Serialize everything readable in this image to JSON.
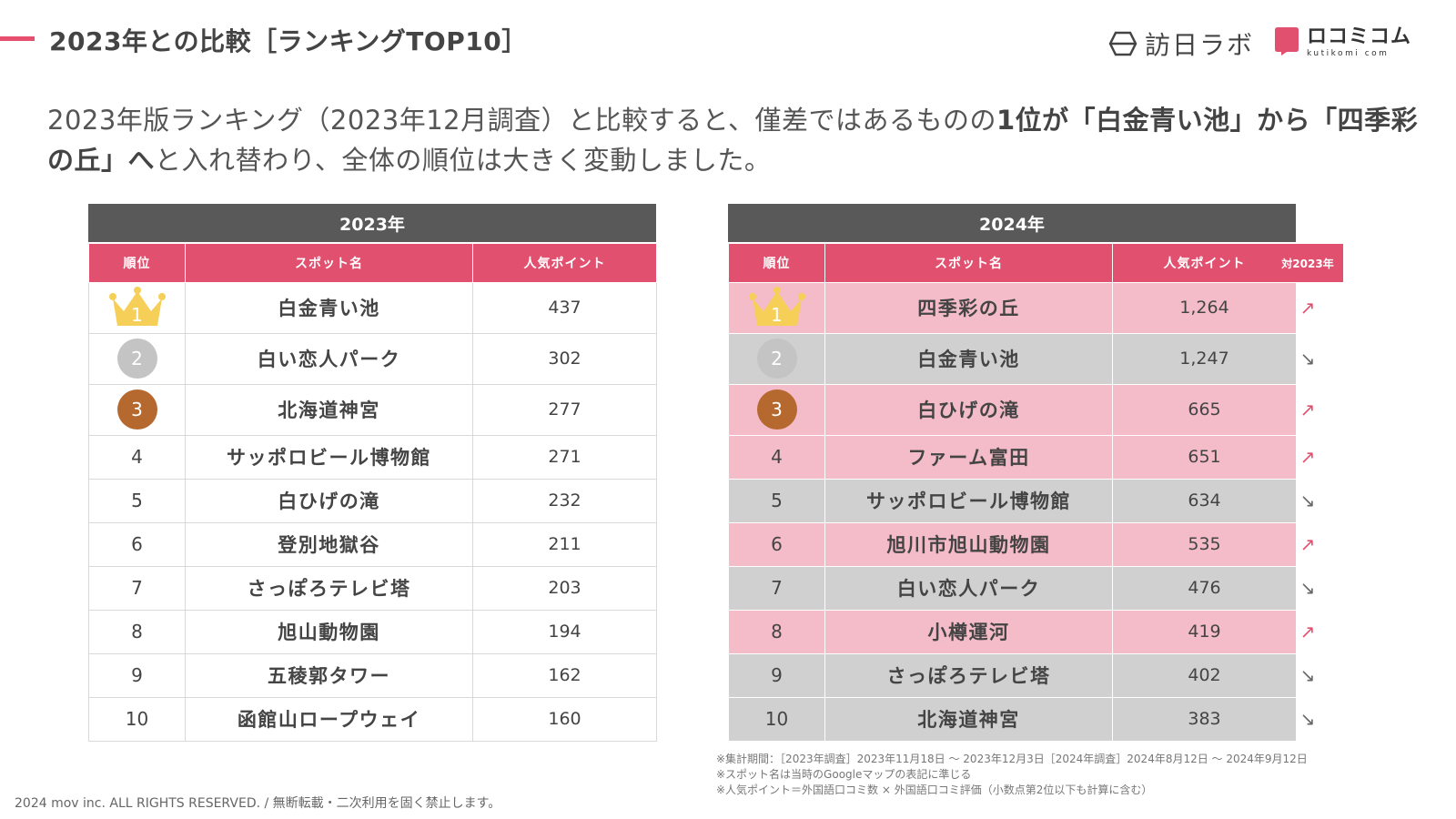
{
  "header": {
    "title": "2023年との比較［ランキングTOP10］",
    "logo_primary": "訪日ラボ",
    "logo_secondary": "ロコミコム",
    "logo_secondary_en": "kutikomi com"
  },
  "lead": {
    "part1": "2023年版ランキング（2023年12月調査）と比較すると、僅差ではあるものの",
    "part2_bold": "1位が「白金青い池」から「四季彩の丘」へ",
    "part3": "と入れ替わり、全体の順位は大きく変動しました。"
  },
  "columns": {
    "rank": "順位",
    "spot": "スポット名",
    "points": "人気ポイント",
    "trend": "対2023年"
  },
  "ranking_2023": {
    "year": "2023年",
    "rows": [
      {
        "rank": "1",
        "name": "白金青い池",
        "points": "437"
      },
      {
        "rank": "2",
        "name": "白い恋人パーク",
        "points": "302"
      },
      {
        "rank": "3",
        "name": "北海道神宮",
        "points": "277"
      },
      {
        "rank": "4",
        "name": "サッポロビール博物館",
        "points": "271"
      },
      {
        "rank": "5",
        "name": "白ひげの滝",
        "points": "232"
      },
      {
        "rank": "6",
        "name": "登別地獄谷",
        "points": "211"
      },
      {
        "rank": "7",
        "name": "さっぽろテレビ塔",
        "points": "203"
      },
      {
        "rank": "8",
        "name": "旭山動物園",
        "points": "194"
      },
      {
        "rank": "9",
        "name": "五稜郭タワー",
        "points": "162"
      },
      {
        "rank": "10",
        "name": "函館山ロープウェイ",
        "points": "160"
      }
    ]
  },
  "ranking_2024": {
    "year": "2024年",
    "rows": [
      {
        "rank": "1",
        "name": "四季彩の丘",
        "points": "1,264",
        "trend": "up",
        "trend_icon": "↗"
      },
      {
        "rank": "2",
        "name": "白金青い池",
        "points": "1,247",
        "trend": "down",
        "trend_icon": "↘"
      },
      {
        "rank": "3",
        "name": "白ひげの滝",
        "points": "665",
        "trend": "up",
        "trend_icon": "↗"
      },
      {
        "rank": "4",
        "name": "ファーム富田",
        "points": "651",
        "trend": "up",
        "trend_icon": "↗"
      },
      {
        "rank": "5",
        "name": "サッポロビール博物館",
        "points": "634",
        "trend": "down",
        "trend_icon": "↘"
      },
      {
        "rank": "6",
        "name": "旭川市旭山動物園",
        "points": "535",
        "trend": "up",
        "trend_icon": "↗"
      },
      {
        "rank": "7",
        "name": "白い恋人パーク",
        "points": "476",
        "trend": "down",
        "trend_icon": "↘"
      },
      {
        "rank": "8",
        "name": "小樽運河",
        "points": "419",
        "trend": "up",
        "trend_icon": "↗"
      },
      {
        "rank": "9",
        "name": "さっぽろテレビ塔",
        "points": "402",
        "trend": "down",
        "trend_icon": "↘"
      },
      {
        "rank": "10",
        "name": "北海道神宮",
        "points": "383",
        "trend": "down",
        "trend_icon": "↘"
      }
    ]
  },
  "notes": [
    "※集計期間：［2023年調査］2023年11月18日 〜 2023年12月3日［2024年調査］2024年8月12日 〜 2024年9月12日",
    "※スポット名は当時のGoogleマップの表記に準じる",
    "※人気ポイント＝外国語口コミ数 × 外国語口コミ評価（小数点第2位以下も計算に含む）"
  ],
  "footer": {
    "copyright": "2024 mov inc. ALL RIGHTS RESERVED. / 無断転載・二次利用を固く禁止します。"
  },
  "colors": {
    "accent": "#e2506f",
    "header_gray": "#595959",
    "row_up": "#f4bcc8",
    "row_down": "#d0d0d0",
    "gold": "#f6cf58",
    "silver": "#c4c4c4",
    "bronze": "#b5692e"
  }
}
